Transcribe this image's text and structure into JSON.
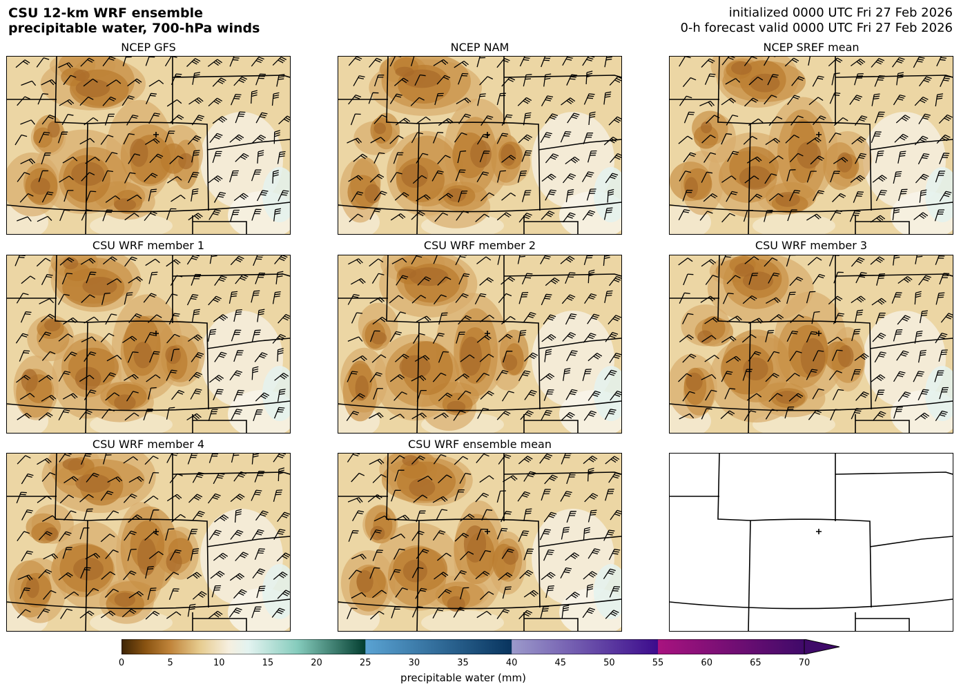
{
  "header": {
    "title_line1": "CSU 12-km WRF ensemble",
    "title_line2": "precipitable water, 700-hPa winds",
    "init_line": "initialized 0000 UTC Fri 27 Feb 2026",
    "valid_line": "0-h forecast valid 0000 UTC Fri 27 Feb 2026"
  },
  "panels": [
    {
      "title": "NCEP GFS",
      "has_field": true
    },
    {
      "title": "NCEP NAM",
      "has_field": true
    },
    {
      "title": "NCEP SREF mean",
      "has_field": true
    },
    {
      "title": "CSU WRF member 1",
      "has_field": true
    },
    {
      "title": "CSU WRF member 2",
      "has_field": true
    },
    {
      "title": "CSU WRF member 3",
      "has_field": true
    },
    {
      "title": "CSU WRF member 4",
      "has_field": true
    },
    {
      "title": "CSU WRF ensemble mean",
      "has_field": true
    },
    {
      "title": "",
      "has_field": false
    }
  ],
  "colorbar": {
    "label": "precipitable water (mm)",
    "min": 0,
    "max": 70,
    "ticks": [
      "0",
      "5",
      "10",
      "15",
      "20",
      "25",
      "30",
      "35",
      "40",
      "45",
      "50",
      "55",
      "60",
      "65",
      "70"
    ],
    "extend": "max",
    "color_stops": [
      {
        "v": 0,
        "c": "#3d2405"
      },
      {
        "v": 2.5,
        "c": "#8a5412"
      },
      {
        "v": 5,
        "c": "#c0843a"
      },
      {
        "v": 8,
        "c": "#e6cb8e"
      },
      {
        "v": 11,
        "c": "#f6efdf"
      },
      {
        "v": 13,
        "c": "#e3f3f0"
      },
      {
        "v": 18,
        "c": "#86ccbd"
      },
      {
        "v": 25,
        "c": "#033e30"
      },
      {
        "v": 25.01,
        "c": "#5aa3d3"
      },
      {
        "v": 40,
        "c": "#08345e"
      },
      {
        "v": 40.01,
        "c": "#9c9acb"
      },
      {
        "v": 55,
        "c": "#3c0b8c"
      },
      {
        "v": 55.01,
        "c": "#a8137f"
      },
      {
        "v": 70,
        "c": "#3f0a69"
      }
    ]
  }
}
